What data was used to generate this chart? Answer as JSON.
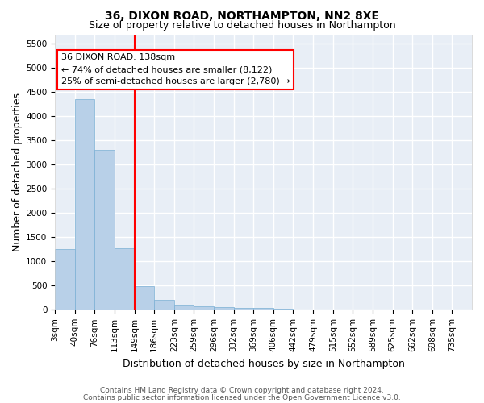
{
  "title": "36, DIXON ROAD, NORTHAMPTON, NN2 8XE",
  "subtitle": "Size of property relative to detached houses in Northampton",
  "xlabel": "Distribution of detached houses by size in Northampton",
  "ylabel": "Number of detached properties",
  "bar_color": "#b8d0e8",
  "bar_edge_color": "#7aafd4",
  "background_color": "#e8eef6",
  "grid_color": "white",
  "vline_x": 4,
  "vline_color": "red",
  "annotation_title": "36 DIXON ROAD: 138sqm",
  "annotation_line1": "← 74% of detached houses are smaller (8,122)",
  "annotation_line2": "25% of semi-detached houses are larger (2,780) →",
  "annotation_box_color": "white",
  "annotation_box_edge": "red",
  "categories": [
    "3sqm",
    "40sqm",
    "76sqm",
    "113sqm",
    "149sqm",
    "186sqm",
    "223sqm",
    "259sqm",
    "296sqm",
    "332sqm",
    "369sqm",
    "406sqm",
    "442sqm",
    "479sqm",
    "515sqm",
    "552sqm",
    "589sqm",
    "625sqm",
    "662sqm",
    "698sqm",
    "735sqm"
  ],
  "values": [
    1250,
    4350,
    3300,
    1280,
    490,
    210,
    90,
    75,
    50,
    40,
    35,
    30,
    0,
    0,
    0,
    0,
    0,
    0,
    0,
    0,
    0
  ],
  "ylim": [
    0,
    5700
  ],
  "yticks": [
    0,
    500,
    1000,
    1500,
    2000,
    2500,
    3000,
    3500,
    4000,
    4500,
    5000,
    5500
  ],
  "footer_line1": "Contains HM Land Registry data © Crown copyright and database right 2024.",
  "footer_line2": "Contains public sector information licensed under the Open Government Licence v3.0.",
  "title_fontsize": 10,
  "subtitle_fontsize": 9,
  "ylabel_fontsize": 9,
  "xlabel_fontsize": 9,
  "tick_fontsize": 7.5,
  "annotation_fontsize": 8,
  "footer_fontsize": 6.5
}
